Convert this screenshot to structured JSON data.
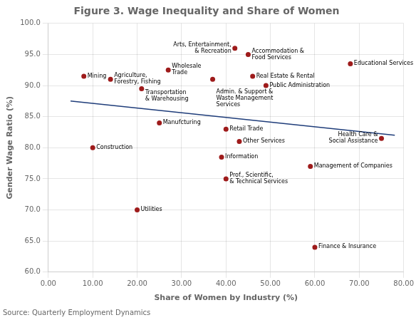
{
  "chart_data": {
    "type": "scatter",
    "title": "Figure 3. Wage Inequality and Share of Women",
    "x_label": "Share of Women by Industry (%)",
    "y_label": "Gender Wage Ratio (%)",
    "source": "Source: Quarterly Employment Dynamics",
    "xlim": [
      0,
      80
    ],
    "ylim": [
      60.0,
      100.0
    ],
    "xticks": [
      {
        "value": 0,
        "label": "0.00"
      },
      {
        "value": 10,
        "label": "10.00"
      },
      {
        "value": 20,
        "label": "20.00"
      },
      {
        "value": 30,
        "label": "30.00"
      },
      {
        "value": 40,
        "label": "40.00"
      },
      {
        "value": 50,
        "label": "50.00"
      },
      {
        "value": 60,
        "label": "60.00"
      },
      {
        "value": 70,
        "label": "70.00"
      },
      {
        "value": 80,
        "label": "80.00"
      }
    ],
    "yticks": [
      {
        "value": 60.0,
        "label": "60.0"
      },
      {
        "value": 65.0,
        "label": "65.0"
      },
      {
        "value": 70.0,
        "label": "70.0"
      },
      {
        "value": 75.0,
        "label": "75.0"
      },
      {
        "value": 80.0,
        "label": "80.0"
      },
      {
        "value": 85.0,
        "label": "85.0"
      },
      {
        "value": 90.0,
        "label": "90.0"
      },
      {
        "value": 95.0,
        "label": "95.0"
      },
      {
        "value": 100.0,
        "label": "100.0"
      }
    ],
    "grid": true,
    "color": "#9e1b1b",
    "points": [
      {
        "x": 8,
        "y": 91.5,
        "label": "Mining"
      },
      {
        "x": 14,
        "y": 91.0,
        "label": "Agriculture,\nForestry, Fishing"
      },
      {
        "x": 21,
        "y": 89.5,
        "label": "Transportation\n& Warehousing"
      },
      {
        "x": 10,
        "y": 80.0,
        "label": "Construction"
      },
      {
        "x": 27,
        "y": 92.5,
        "label": "Wholesale\nTrade"
      },
      {
        "x": 25,
        "y": 84.0,
        "label": "Manufcturing"
      },
      {
        "x": 20,
        "y": 70.0,
        "label": "Utilities"
      },
      {
        "x": 37,
        "y": 91.0,
        "label": "Admin. & Support &\nWaste Management\nServices"
      },
      {
        "x": 40,
        "y": 83.0,
        "label": "Retail Trade"
      },
      {
        "x": 39,
        "y": 78.5,
        "label": "Information"
      },
      {
        "x": 40,
        "y": 75.0,
        "label": "Prof., Scientific,\n& Technical Services"
      },
      {
        "x": 42,
        "y": 96.0,
        "label": "Arts, Entertainment,\n& Recreation"
      },
      {
        "x": 45,
        "y": 95.0,
        "label": "Accommodation &\nFood Services"
      },
      {
        "x": 46,
        "y": 91.5,
        "label": "Real Estate & Rental"
      },
      {
        "x": 49,
        "y": 90.0,
        "label": "Public Administration"
      },
      {
        "x": 43,
        "y": 81.0,
        "label": "Other Services"
      },
      {
        "x": 59,
        "y": 77.0,
        "label": "Management of Companies"
      },
      {
        "x": 68,
        "y": 93.5,
        "label": "Educational Services"
      },
      {
        "x": 75,
        "y": 81.5,
        "label": "Health Care &\nSocial Assistance"
      },
      {
        "x": 60,
        "y": 64.0,
        "label": "Finance & Insurance"
      }
    ],
    "trendline": {
      "x": [
        5,
        78
      ],
      "y": [
        87.5,
        82.0
      ],
      "color": "#1f3d7a"
    }
  }
}
